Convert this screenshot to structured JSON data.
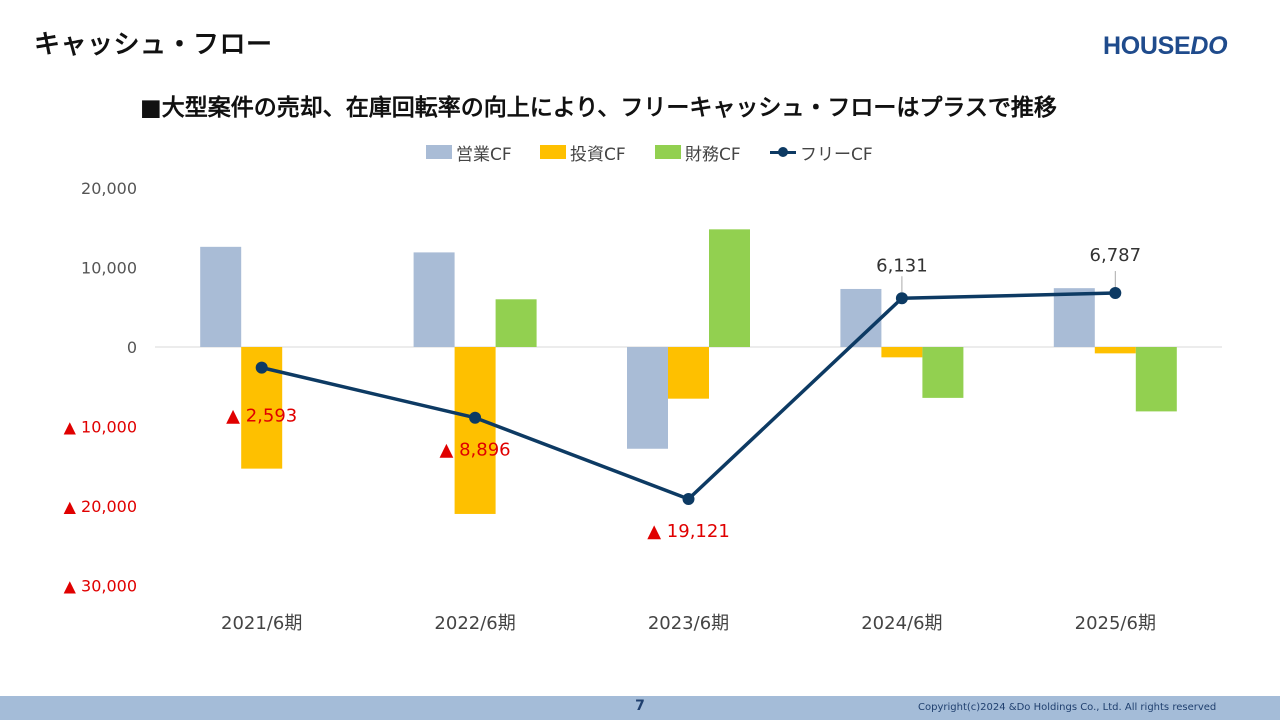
{
  "page": {
    "title": "キャッシュ・フロー",
    "logo_text_a": "HOUSE",
    "logo_text_b": "DO",
    "subtitle": "■大型案件の売却、在庫回転率の向上により、フリーキャッシュ・フローはプラスで推移",
    "page_number": "7",
    "copyright": "Copyright(c)2024 &Do Holdings Co., Ltd. All rights reserved"
  },
  "legend": [
    {
      "label": "営業CF",
      "color": "#a9bcd6",
      "kind": "bar"
    },
    {
      "label": "投資CF",
      "color": "#fec000",
      "kind": "bar"
    },
    {
      "label": "財務CF",
      "color": "#92d050",
      "kind": "bar"
    },
    {
      "label": "フリーCF",
      "color": "#0d3a63",
      "kind": "line"
    }
  ],
  "chart_data": {
    "type": "bar",
    "categories": [
      "2021/6期",
      "2022/6期",
      "2023/6期",
      "2024/6期",
      "2025/6期"
    ],
    "series": [
      {
        "name": "営業CF",
        "type": "bar",
        "color": "#a9bcd6",
        "values": [
          12600,
          11900,
          -12800,
          7300,
          7400
        ]
      },
      {
        "name": "投資CF",
        "type": "bar",
        "color": "#fec000",
        "values": [
          -15300,
          -21000,
          -6500,
          -1300,
          -800
        ]
      },
      {
        "name": "財務CF",
        "type": "bar",
        "color": "#92d050",
        "values": [
          null,
          6000,
          14800,
          -6400,
          -8100
        ]
      },
      {
        "name": "フリーCF",
        "type": "line",
        "color": "#0d3a63",
        "values": [
          -2593,
          -8896,
          -19121,
          6131,
          6787
        ]
      }
    ],
    "data_labels": [
      "▲ 2,593",
      "▲ 8,896",
      "▲ 19,121",
      "6,131",
      "6,787"
    ],
    "data_label_colors": [
      "#e00000",
      "#e00000",
      "#e00000",
      "#333333",
      "#333333"
    ],
    "y_ticks": [
      {
        "value": 20000,
        "label": "20,000",
        "color": "#555555"
      },
      {
        "value": 10000,
        "label": "10,000",
        "color": "#555555"
      },
      {
        "value": 0,
        "label": "0",
        "color": "#555555"
      },
      {
        "value": -10000,
        "label": "▲ 10,000",
        "color": "#e00000"
      },
      {
        "value": -20000,
        "label": "▲ 20,000",
        "color": "#e00000"
      },
      {
        "value": -30000,
        "label": "▲ 30,000",
        "color": "#e00000"
      }
    ],
    "ylim": [
      -30000,
      20000
    ],
    "grid": false,
    "legend_position": "top"
  }
}
